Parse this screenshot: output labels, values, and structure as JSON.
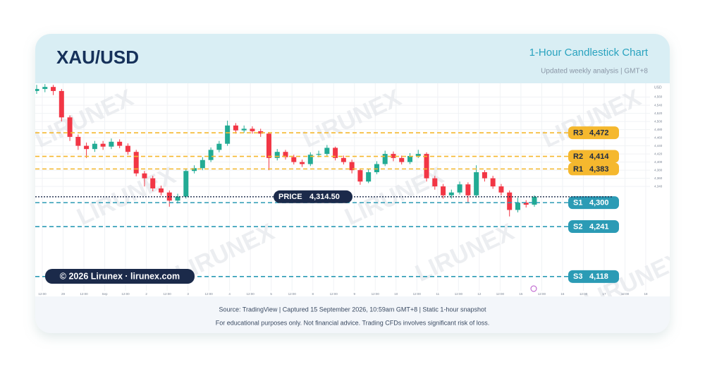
{
  "header": {
    "title": "XAU/USD",
    "subtitle": "1-Hour Candlestick Chart",
    "note": "Updated weekly analysis | GMT+8"
  },
  "chart_data": {
    "type": "candlestick",
    "currency": "USD",
    "watermark": "LIRUNEX",
    "colors": {
      "up": "#22ab94",
      "down": "#f23645"
    },
    "grid": true,
    "ylim": [
      4069,
      4594
    ],
    "yticks": [
      {
        "value": 4340,
        "label": "4,340"
      },
      {
        "value": 4360,
        "label": "4,360"
      },
      {
        "value": 4380,
        "label": "4,380"
      },
      {
        "value": 4400,
        "label": "4,400"
      },
      {
        "value": 4420,
        "label": "4,420"
      },
      {
        "value": 4440,
        "label": "4,440"
      },
      {
        "value": 4460,
        "label": "4,460"
      },
      {
        "value": 4480,
        "label": "4,480"
      },
      {
        "value": 4500,
        "label": "4,500"
      },
      {
        "value": 4520,
        "label": "4,520"
      },
      {
        "value": 4540,
        "label": "4,540"
      },
      {
        "value": 4560,
        "label": "4,560"
      }
    ],
    "x_labels": [
      "12:00",
      "29",
      "12:00",
      "Sep",
      "12:00",
      "2",
      "12:00",
      "3",
      "12:00",
      "4",
      "12:00",
      "5",
      "12:00",
      "8",
      "12:00",
      "9",
      "12:00",
      "10",
      "12:00",
      "11",
      "12:00",
      "12",
      "12:00",
      "15",
      "12:00",
      "16",
      "12:00",
      "17",
      "12:00",
      "18"
    ],
    "open": [
      4575,
      4580,
      4585,
      4575,
      4510,
      4462,
      4440,
      4432,
      4445,
      4438,
      4450,
      4440,
      4425,
      4372,
      4360,
      4335,
      4325,
      4305,
      4315,
      4378,
      4385,
      4405,
      4430,
      4445,
      4490,
      4478,
      4482,
      4476,
      4470,
      4410,
      4425,
      4412,
      4400,
      4395,
      4418,
      4420,
      4435,
      4410,
      4400,
      4380,
      4352,
      4375,
      4395,
      4420,
      4410,
      4400,
      4415,
      4420,
      4360,
      4340,
      4318,
      4325,
      4345,
      4318,
      4375,
      4360,
      4340,
      4325,
      4282,
      4300,
      4295
    ],
    "high": [
      4590,
      4592,
      4590,
      4580,
      4515,
      4468,
      4448,
      4452,
      4452,
      4458,
      4456,
      4446,
      4430,
      4378,
      4366,
      4342,
      4330,
      4322,
      4384,
      4392,
      4412,
      4436,
      4452,
      4502,
      4496,
      4490,
      4488,
      4482,
      4474,
      4432,
      4430,
      4418,
      4406,
      4424,
      4428,
      4442,
      4438,
      4416,
      4406,
      4384,
      4382,
      4402,
      4428,
      4426,
      4416,
      4422,
      4430,
      4424,
      4366,
      4346,
      4332,
      4352,
      4350,
      4392,
      4380,
      4366,
      4346,
      4330,
      4312,
      4306,
      4318
    ],
    "low": [
      4568,
      4572,
      4565,
      4500,
      4452,
      4430,
      4410,
      4425,
      4430,
      4432,
      4434,
      4418,
      4365,
      4340,
      4328,
      4318,
      4290,
      4298,
      4310,
      4372,
      4380,
      4400,
      4424,
      4440,
      4470,
      4472,
      4470,
      4462,
      4380,
      4404,
      4406,
      4394,
      4388,
      4390,
      4412,
      4414,
      4404,
      4394,
      4372,
      4344,
      4348,
      4370,
      4390,
      4402,
      4394,
      4395,
      4410,
      4352,
      4332,
      4310,
      4310,
      4320,
      4300,
      4312,
      4352,
      4334,
      4318,
      4266,
      4276,
      4288,
      4290
    ],
    "close": [
      4580,
      4585,
      4575,
      4510,
      4462,
      4440,
      4432,
      4445,
      4438,
      4450,
      4440,
      4425,
      4372,
      4360,
      4335,
      4325,
      4305,
      4315,
      4378,
      4385,
      4405,
      4430,
      4445,
      4490,
      4478,
      4482,
      4476,
      4470,
      4410,
      4425,
      4412,
      4400,
      4395,
      4418,
      4420,
      4435,
      4410,
      4400,
      4380,
      4352,
      4375,
      4395,
      4420,
      4410,
      4400,
      4415,
      4420,
      4360,
      4340,
      4318,
      4325,
      4345,
      4318,
      4375,
      4360,
      4340,
      4325,
      4282,
      4300,
      4295,
      4314.5
    ],
    "levels": [
      {
        "label": "R3",
        "value": 4472,
        "value_label": "4,472",
        "kind": "resistance"
      },
      {
        "label": "R2",
        "value": 4414,
        "value_label": "4,414",
        "kind": "resistance"
      },
      {
        "label": "R1",
        "value": 4383,
        "value_label": "4,383",
        "kind": "resistance"
      },
      {
        "label": "S1",
        "value": 4300,
        "value_label": "4,300",
        "kind": "support"
      },
      {
        "label": "S2",
        "value": 4241,
        "value_label": "4,241",
        "kind": "support"
      },
      {
        "label": "S3",
        "value": 4118,
        "value_label": "4,118",
        "kind": "support"
      }
    ],
    "level_colors": {
      "resistance": "#f5b82e",
      "support": "#2b9bb5"
    },
    "price": {
      "label": "PRICE",
      "value": 4314.5,
      "value_label": "4,314.50"
    },
    "badge": "© 2026 Lirunex · lirunex.com"
  },
  "footer": {
    "source": "Source: TradingView | Captured 15 September 2026, 10:59am GMT+8 | Static 1-hour snapshot",
    "disclaimer": "For educational purposes only. Not financial advice. Trading CFDs involves significant risk of loss."
  }
}
